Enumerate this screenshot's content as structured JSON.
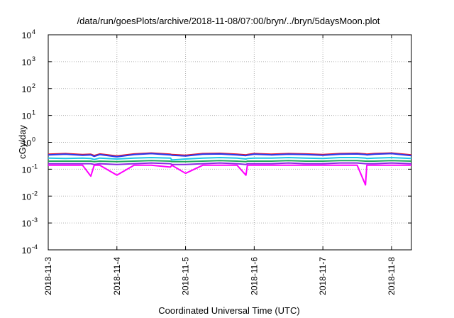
{
  "chart_data": {
    "type": "line",
    "title": "/data/run/goesPlots/archive/2018-11-08/07:00/bryn/../bryn/5daysMoon.plot",
    "xlabel": "Coordinated Universal Time (UTC)",
    "ylabel": "cGy/day",
    "x_range": [
      "2018-11-03",
      "2018-11-08 07:00"
    ],
    "x_ticks": [
      "2018-11-3",
      "2018-11-4",
      "2018-11-5",
      "2018-11-6",
      "2018-11-7",
      "2018-11-8"
    ],
    "y_scale": "log",
    "ylim": [
      0.0001,
      10000
    ],
    "y_ticks": [
      {
        "mantissa": "10",
        "exp": "-4"
      },
      {
        "mantissa": "10",
        "exp": "-3"
      },
      {
        "mantissa": "10",
        "exp": "-2"
      },
      {
        "mantissa": "10",
        "exp": "-1"
      },
      {
        "mantissa": "10",
        "exp": "0"
      },
      {
        "mantissa": "10",
        "exp": "1"
      },
      {
        "mantissa": "10",
        "exp": "2"
      },
      {
        "mantissa": "10",
        "exp": "3"
      },
      {
        "mantissa": "10",
        "exp": "4"
      }
    ],
    "grid": true,
    "legend": "none",
    "x_days_since_start": [
      0,
      0.25,
      0.5,
      0.62,
      0.67,
      0.75,
      1.0,
      1.25,
      1.5,
      1.78,
      1.8,
      2.0,
      2.25,
      2.5,
      2.75,
      2.88,
      2.9,
      3.0,
      3.25,
      3.5,
      3.75,
      4.0,
      4.25,
      4.5,
      4.62,
      4.64,
      4.75,
      5.0,
      5.29
    ],
    "series": [
      {
        "color": "#e8142a",
        "values": [
          0.36,
          0.38,
          0.35,
          0.36,
          0.32,
          0.37,
          0.31,
          0.37,
          0.4,
          0.36,
          0.35,
          0.33,
          0.38,
          0.39,
          0.36,
          0.34,
          0.35,
          0.38,
          0.36,
          0.38,
          0.37,
          0.35,
          0.38,
          0.39,
          0.37,
          0.36,
          0.38,
          0.4,
          0.34
        ]
      },
      {
        "color": "#2a3cf0",
        "values": [
          0.34,
          0.36,
          0.33,
          0.34,
          0.3,
          0.35,
          0.29,
          0.35,
          0.38,
          0.34,
          0.33,
          0.31,
          0.36,
          0.37,
          0.34,
          0.32,
          0.33,
          0.36,
          0.34,
          0.36,
          0.35,
          0.33,
          0.36,
          0.37,
          0.35,
          0.34,
          0.36,
          0.38,
          0.32
        ]
      },
      {
        "color": "#1ec8e6",
        "values": [
          0.26,
          0.25,
          0.26,
          0.25,
          0.23,
          0.26,
          0.24,
          0.26,
          0.27,
          0.26,
          0.22,
          0.24,
          0.26,
          0.27,
          0.26,
          0.24,
          0.25,
          0.26,
          0.26,
          0.27,
          0.26,
          0.25,
          0.27,
          0.27,
          0.26,
          0.25,
          0.26,
          0.27,
          0.25
        ]
      },
      {
        "color": "#22a85a",
        "values": [
          0.2,
          0.2,
          0.2,
          0.2,
          0.19,
          0.2,
          0.19,
          0.2,
          0.21,
          0.2,
          0.19,
          0.19,
          0.2,
          0.21,
          0.2,
          0.19,
          0.2,
          0.2,
          0.2,
          0.21,
          0.2,
          0.2,
          0.21,
          0.21,
          0.2,
          0.2,
          0.2,
          0.21,
          0.2
        ]
      },
      {
        "color": "#8a2be2",
        "values": [
          0.16,
          0.16,
          0.16,
          0.16,
          0.15,
          0.16,
          0.15,
          0.16,
          0.17,
          0.16,
          0.15,
          0.15,
          0.16,
          0.17,
          0.16,
          0.15,
          0.16,
          0.16,
          0.16,
          0.17,
          0.16,
          0.16,
          0.17,
          0.17,
          0.16,
          0.16,
          0.16,
          0.17,
          0.16
        ]
      },
      {
        "color": "#ff00ff",
        "values": [
          0.14,
          0.14,
          0.14,
          0.055,
          0.14,
          0.14,
          0.06,
          0.14,
          0.14,
          0.12,
          0.14,
          0.07,
          0.14,
          0.14,
          0.14,
          0.06,
          0.14,
          0.14,
          0.14,
          0.14,
          0.14,
          0.14,
          0.14,
          0.14,
          0.026,
          0.14,
          0.14,
          0.14,
          0.14
        ]
      }
    ]
  }
}
